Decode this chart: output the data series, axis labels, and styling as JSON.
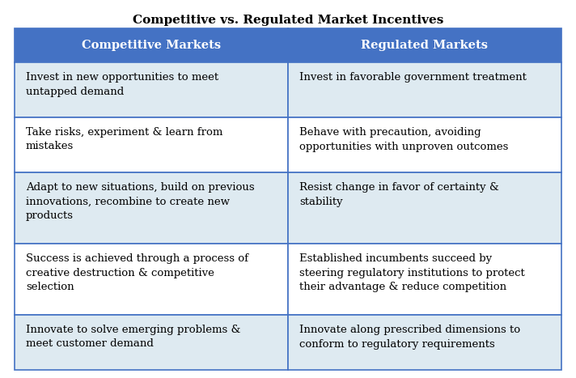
{
  "title": "Competitive vs. Regulated Market Incentives",
  "col1_header": "Competitive Markets",
  "col2_header": "Regulated Markets",
  "rows": [
    [
      "Invest in new opportunities to meet\nuntapped demand",
      "Invest in favorable government treatment"
    ],
    [
      "Take risks, experiment & learn from\nmistakes",
      "Behave with precaution, avoiding\nopportunities with unproven outcomes"
    ],
    [
      "Adapt to new situations, build on previous\ninnovations, recombine to create new\nproducts",
      "Resist change in favor of certainty &\nstability"
    ],
    [
      "Success is achieved through a process of\ncreative destruction & competitive\nselection",
      "Established incumbents succeed by\nsteering regulatory institutions to protect\ntheir advantage & reduce competition"
    ],
    [
      "Innovate to solve emerging problems &\nmeet customer demand",
      "Innovate along prescribed dimensions to\nconform to regulatory requirements"
    ]
  ],
  "header_bg_color": "#4472C4",
  "header_text_color": "#FFFFFF",
  "row_bg": [
    "#DEEAF1",
    "#FFFFFF",
    "#DEEAF1",
    "#FFFFFF",
    "#DEEAF1"
  ],
  "cell_text_color": "#000000",
  "border_color": "#4472C4",
  "title_fontsize": 11,
  "header_fontsize": 10.5,
  "cell_fontsize": 9.5,
  "fig_bg_color": "#FFFFFF"
}
